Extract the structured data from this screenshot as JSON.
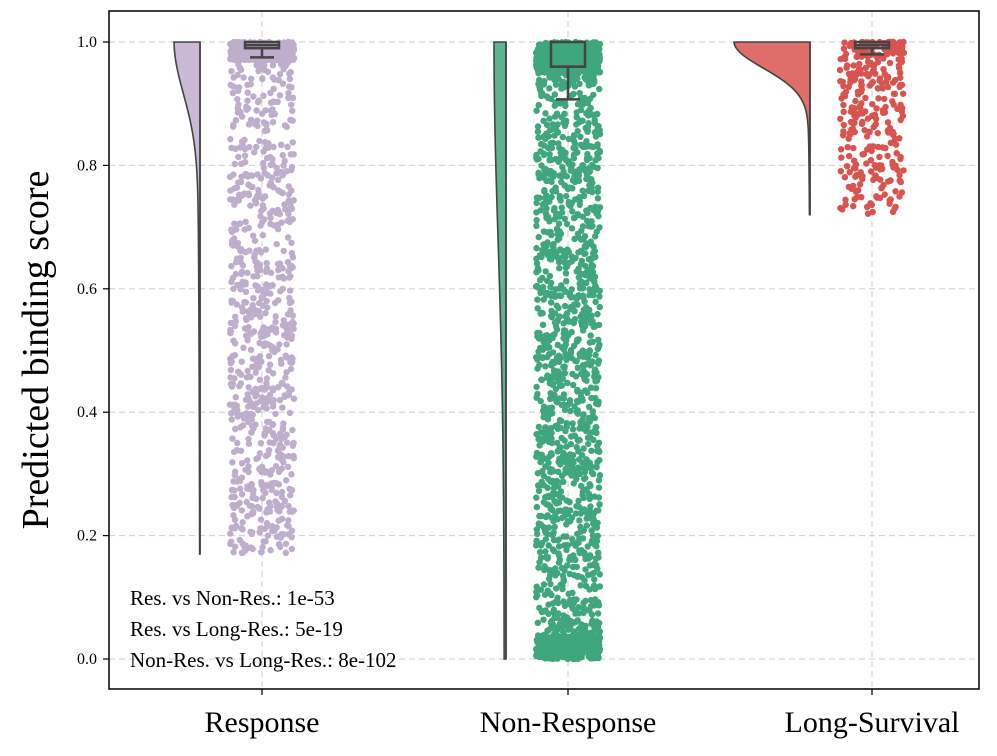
{
  "chart_data": {
    "type": "raincloud",
    "title": "",
    "xlabel": "",
    "ylabel": "Predicted binding score",
    "ylim": [
      -0.05,
      1.05
    ],
    "yticks": [
      0.0,
      0.2,
      0.4,
      0.6,
      0.8,
      1.0
    ],
    "ytick_labels": [
      "0.0",
      "0.2",
      "0.4",
      "0.6",
      "0.8",
      "1.0"
    ],
    "grid": true,
    "categories": [
      "Response",
      "Non-Response",
      "Long-Survival"
    ],
    "series": [
      {
        "name": "Response",
        "color": "#bfadcc",
        "n_points": 1200,
        "range": [
          0.17,
          1.0
        ],
        "box": {
          "q1": 0.99,
          "median": 0.995,
          "q3": 1.0,
          "whisker_low": 0.975,
          "whisker_high": 1.0
        }
      },
      {
        "name": "Non-Response",
        "color": "#3fa67d",
        "n_points": 2200,
        "range": [
          0.0,
          1.0
        ],
        "box": {
          "q1": 0.96,
          "median": 0.96,
          "q3": 1.0,
          "whisker_low": 0.907,
          "whisker_high": 1.0
        }
      },
      {
        "name": "Long-Survival",
        "color": "#d9534f",
        "n_points": 320,
        "range": [
          0.72,
          1.0
        ],
        "box": {
          "q1": 0.99,
          "median": 0.995,
          "q3": 1.0,
          "whisker_low": 0.98,
          "whisker_high": 1.0
        }
      }
    ],
    "annotations": [
      "Res. vs Non-Res.: 1e-53",
      "Res. vs Long-Res.: 5e-19",
      "Non-Res. vs Long-Res.: 8e-102"
    ]
  }
}
